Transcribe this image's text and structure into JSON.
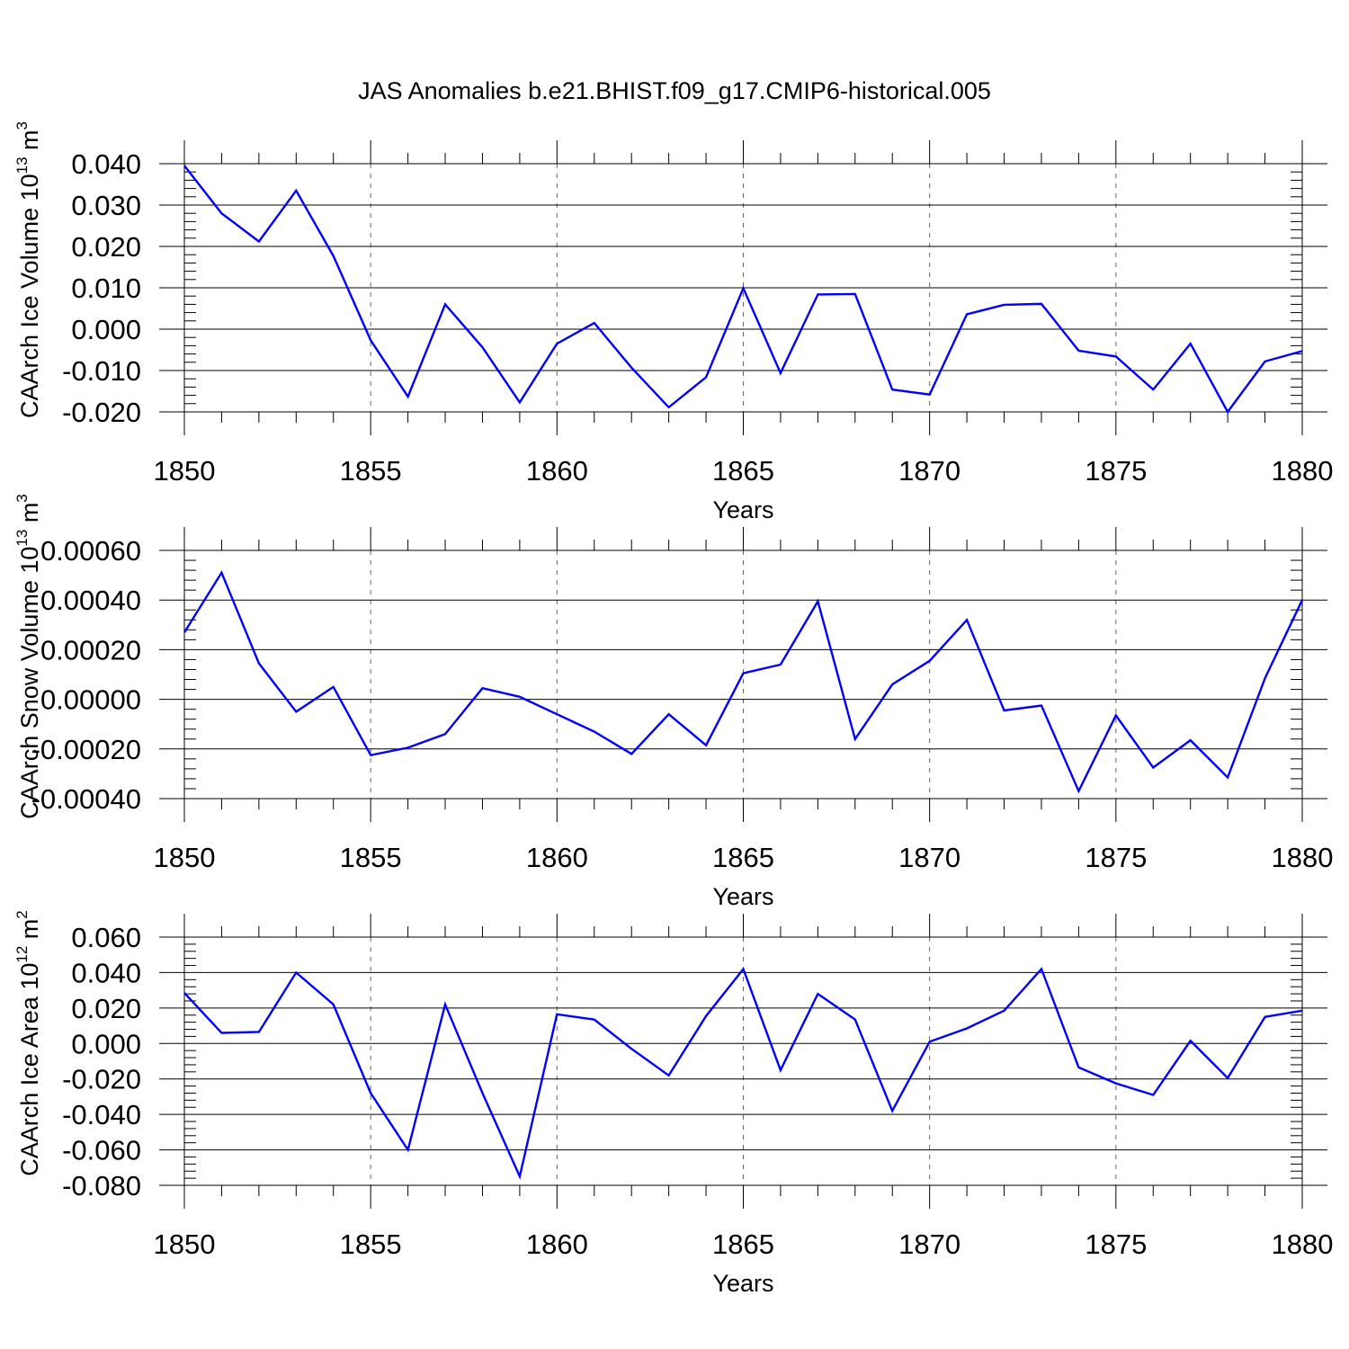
{
  "title": "JAS Anomalies b.e21.BHIST.f09_g17.CMIP6-historical.005",
  "chart_data": [
    {
      "type": "line",
      "xlabel": "Years",
      "ylabel": {
        "text": "CAArch Ice Volume 10",
        "sup": "13",
        "unit": " m",
        "unit_sup": "3"
      },
      "xlim": [
        1850,
        1880
      ],
      "ylim": [
        -0.02,
        0.04
      ],
      "xticks": [
        1850,
        1855,
        1860,
        1865,
        1870,
        1875,
        1880
      ],
      "xtick_labels": [
        "1850",
        "1855",
        "1860",
        "1865",
        "1870",
        "1875",
        "1880"
      ],
      "yticks": [
        -0.02,
        -0.01,
        0.0,
        0.01,
        0.02,
        0.03,
        0.04
      ],
      "ytick_labels": [
        "-0.020",
        "-0.010",
        "0.000",
        "0.010",
        "0.020",
        "0.030",
        "0.040"
      ],
      "grid": "vertical-dashed",
      "series": [
        {
          "color": "#0000ff",
          "x": [
            1850,
            1851,
            1852,
            1853,
            1854,
            1855,
            1856,
            1857,
            1858,
            1859,
            1860,
            1861,
            1862,
            1863,
            1864,
            1865,
            1866,
            1867,
            1868,
            1869,
            1870,
            1871,
            1872,
            1873,
            1874,
            1875,
            1876,
            1877,
            1878,
            1879,
            1880
          ],
          "y": [
            0.0395,
            0.028,
            0.0212,
            0.0335,
            0.0177,
            -0.0027,
            -0.0163,
            0.006,
            -0.0044,
            -0.0177,
            -0.0035,
            0.0015,
            -0.0093,
            -0.0189,
            -0.0116,
            0.0099,
            -0.0106,
            0.0084,
            0.0085,
            -0.0146,
            -0.0158,
            0.0036,
            0.0059,
            0.0061,
            -0.0052,
            -0.0066,
            -0.0146,
            -0.0035,
            -0.02,
            -0.0078,
            -0.0053
          ]
        }
      ]
    },
    {
      "type": "line",
      "xlabel": "Years",
      "ylabel": {
        "text": "CAArch Snow Volume 10",
        "sup": "13",
        "unit": " m",
        "unit_sup": "3"
      },
      "xlim": [
        1850,
        1880
      ],
      "ylim": [
        -0.0004,
        0.0006
      ],
      "xticks": [
        1850,
        1855,
        1860,
        1865,
        1870,
        1875,
        1880
      ],
      "xtick_labels": [
        "1850",
        "1855",
        "1860",
        "1865",
        "1870",
        "1875",
        "1880"
      ],
      "yticks": [
        -0.0004,
        -0.0002,
        0.0,
        0.0002,
        0.0004,
        0.0006
      ],
      "ytick_labels": [
        "-0.00040",
        "-0.00020",
        "0.00000",
        "0.00020",
        "0.00040",
        "0.00060"
      ],
      "grid": "vertical-dashed",
      "series": [
        {
          "color": "#0000ff",
          "x": [
            1850,
            1851,
            1852,
            1853,
            1854,
            1855,
            1856,
            1857,
            1858,
            1859,
            1860,
            1861,
            1862,
            1863,
            1864,
            1865,
            1866,
            1867,
            1868,
            1869,
            1870,
            1871,
            1872,
            1873,
            1874,
            1875,
            1876,
            1877,
            1878,
            1879,
            1880
          ],
          "y": [
            0.00027,
            0.00051,
            0.000145,
            -5e-05,
            5e-05,
            -0.000225,
            -0.000195,
            -0.00014,
            4.5e-05,
            1e-05,
            -6e-05,
            -0.00013,
            -0.00022,
            -6e-05,
            -0.000185,
            0.000105,
            0.00014,
            0.000395,
            -0.00016,
            6e-05,
            0.000155,
            0.00032,
            -4.5e-05,
            -2.5e-05,
            -0.00037,
            -6.5e-05,
            -0.000275,
            -0.000165,
            -0.000315,
            8.5e-05,
            0.0004
          ]
        }
      ]
    },
    {
      "type": "line",
      "xlabel": "Years",
      "ylabel": {
        "text": "CAArch Ice Area 10",
        "sup": "12",
        "unit": " m",
        "unit_sup": "2"
      },
      "xlim": [
        1850,
        1880
      ],
      "ylim": [
        -0.08,
        0.06
      ],
      "xticks": [
        1850,
        1855,
        1860,
        1865,
        1870,
        1875,
        1880
      ],
      "xtick_labels": [
        "1850",
        "1855",
        "1860",
        "1865",
        "1870",
        "1875",
        "1880"
      ],
      "yticks": [
        -0.08,
        -0.06,
        -0.04,
        -0.02,
        0.0,
        0.02,
        0.04,
        0.06
      ],
      "ytick_labels": [
        "-0.080",
        "-0.060",
        "-0.040",
        "-0.020",
        "0.000",
        "0.020",
        "0.040",
        "0.060"
      ],
      "grid": "vertical-dashed",
      "series": [
        {
          "color": "#0000ff",
          "x": [
            1850,
            1851,
            1852,
            1853,
            1854,
            1855,
            1856,
            1857,
            1858,
            1859,
            1860,
            1861,
            1862,
            1863,
            1864,
            1865,
            1866,
            1867,
            1868,
            1869,
            1870,
            1871,
            1872,
            1873,
            1874,
            1875,
            1876,
            1877,
            1878,
            1879,
            1880
          ],
          "y": [
            0.0285,
            0.006,
            0.0065,
            0.04,
            0.022,
            -0.028,
            -0.06,
            0.022,
            -0.028,
            -0.075,
            0.0165,
            0.0135,
            -0.003,
            -0.018,
            0.0155,
            0.042,
            -0.015,
            0.028,
            0.0135,
            -0.038,
            0.001,
            0.0085,
            0.0185,
            0.042,
            -0.0135,
            -0.0225,
            -0.029,
            0.0015,
            -0.0195,
            0.015,
            0.0185
          ]
        }
      ]
    }
  ]
}
